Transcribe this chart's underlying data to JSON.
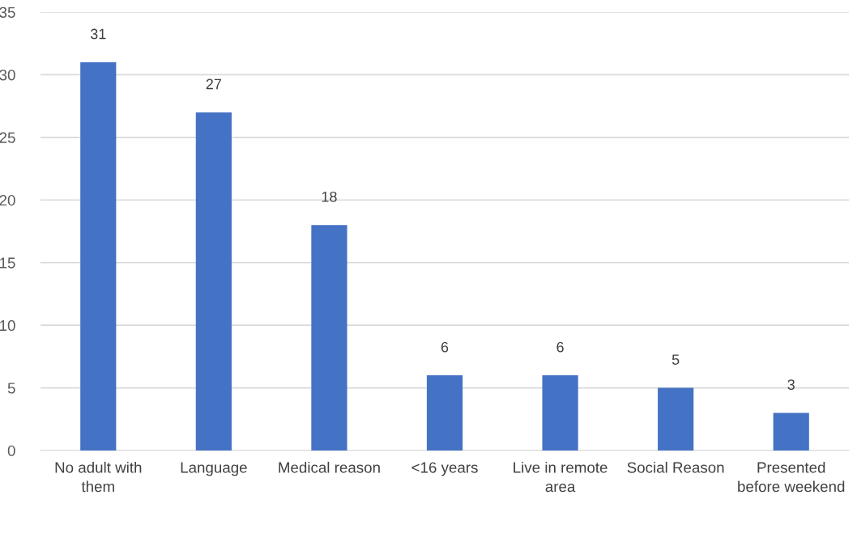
{
  "chart_data": {
    "type": "bar",
    "categories": [
      "No adult with them",
      "Language",
      "Medical reason",
      "<16 years",
      "Live in remote area",
      "Social Reason",
      "Presented before weekend"
    ],
    "values": [
      31,
      27,
      18,
      6,
      6,
      5,
      3
    ],
    "color": "#4472c4",
    "ylim": [
      0,
      35
    ],
    "yticks": [
      0,
      5,
      10,
      15,
      20,
      25,
      30,
      35
    ],
    "grid": "y",
    "data_labels": true
  }
}
